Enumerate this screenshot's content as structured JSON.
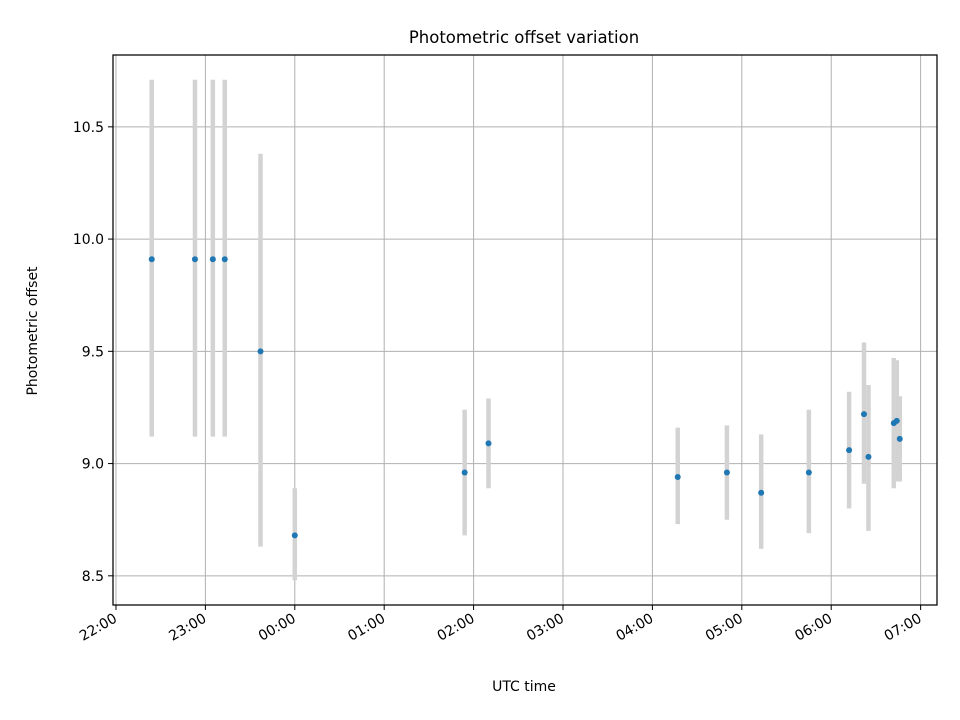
{
  "chart_data": {
    "type": "scatter",
    "title": "Photometric offset variation",
    "xlabel": "UTC time",
    "ylabel": "Photometric offset",
    "x_is_time": true,
    "xlim": [
      "21:58",
      "07:11"
    ],
    "ylim": [
      8.37,
      10.82
    ],
    "x_ticks": [
      "22:00",
      "23:00",
      "00:00",
      "01:00",
      "02:00",
      "03:00",
      "04:00",
      "05:00",
      "06:00",
      "07:00"
    ],
    "y_ticks": [
      8.5,
      9.0,
      9.5,
      10.0,
      10.5
    ],
    "grid": true,
    "legend": "none",
    "points": [
      {
        "x": "22:24",
        "y": 9.91,
        "err_low": 9.12,
        "err_high": 10.71
      },
      {
        "x": "22:53",
        "y": 9.91,
        "err_low": 9.12,
        "err_high": 10.71
      },
      {
        "x": "23:05",
        "y": 9.91,
        "err_low": 9.12,
        "err_high": 10.71
      },
      {
        "x": "23:13",
        "y": 9.91,
        "err_low": 9.12,
        "err_high": 10.71
      },
      {
        "x": "23:37",
        "y": 9.5,
        "err_low": 8.63,
        "err_high": 10.38
      },
      {
        "x": "00:00",
        "y": 8.68,
        "err_low": 8.48,
        "err_high": 8.89
      },
      {
        "x": "01:54",
        "y": 8.96,
        "err_low": 8.68,
        "err_high": 9.24
      },
      {
        "x": "02:10",
        "y": 9.09,
        "err_low": 8.89,
        "err_high": 9.29
      },
      {
        "x": "04:17",
        "y": 8.94,
        "err_low": 8.73,
        "err_high": 9.16
      },
      {
        "x": "04:50",
        "y": 8.96,
        "err_low": 8.75,
        "err_high": 9.17
      },
      {
        "x": "05:13",
        "y": 8.87,
        "err_low": 8.62,
        "err_high": 9.13
      },
      {
        "x": "05:45",
        "y": 8.96,
        "err_low": 8.69,
        "err_high": 9.24
      },
      {
        "x": "06:12",
        "y": 9.06,
        "err_low": 8.8,
        "err_high": 9.32
      },
      {
        "x": "06:22",
        "y": 9.22,
        "err_low": 8.91,
        "err_high": 9.54
      },
      {
        "x": "06:25",
        "y": 9.03,
        "err_low": 8.7,
        "err_high": 9.35
      },
      {
        "x": "06:42",
        "y": 9.18,
        "err_low": 8.89,
        "err_high": 9.47
      },
      {
        "x": "06:44",
        "y": 9.19,
        "err_low": 8.92,
        "err_high": 9.46
      },
      {
        "x": "06:46",
        "y": 9.11,
        "err_low": 8.92,
        "err_high": 9.3
      }
    ],
    "colors": {
      "point": "#1f77b4",
      "errorbar": "#d3d3d3",
      "grid": "#b0b0b0",
      "axes": "#000000"
    }
  }
}
